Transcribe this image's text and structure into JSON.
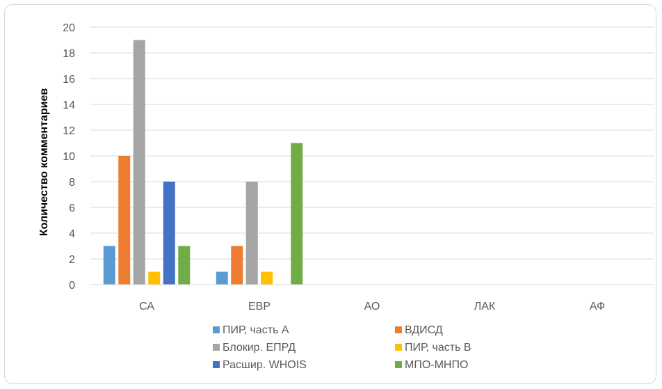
{
  "chart_data": {
    "type": "bar",
    "title": "",
    "xlabel": "",
    "ylabel": "Количество комментариев",
    "ylim": [
      0,
      20
    ],
    "yticks": [
      0,
      2,
      4,
      6,
      8,
      10,
      12,
      14,
      16,
      18,
      20
    ],
    "grid": true,
    "legend_position": "bottom",
    "categories": [
      "СА",
      "ЕВР",
      "АО",
      "ЛАК",
      "АФ"
    ],
    "series": [
      {
        "name": "ПИР, часть А",
        "color": "#5b9bd5",
        "values": [
          3,
          1,
          0,
          0,
          0
        ]
      },
      {
        "name": "ВДИСД",
        "color": "#ed7d31",
        "values": [
          10,
          3,
          0,
          0,
          0
        ]
      },
      {
        "name": "Блокир. ЕПРД",
        "color": "#a5a5a5",
        "values": [
          19,
          8,
          0,
          0,
          0
        ]
      },
      {
        "name": "ПИР, часть В",
        "color": "#ffc000",
        "values": [
          1,
          1,
          0,
          0,
          0
        ]
      },
      {
        "name": "Расшир. WHOIS",
        "color": "#4472c4",
        "values": [
          8,
          0,
          0,
          0,
          0
        ]
      },
      {
        "name": "МПО-МНПО",
        "color": "#70ad47",
        "values": [
          3,
          11,
          0,
          0,
          0
        ]
      }
    ]
  }
}
